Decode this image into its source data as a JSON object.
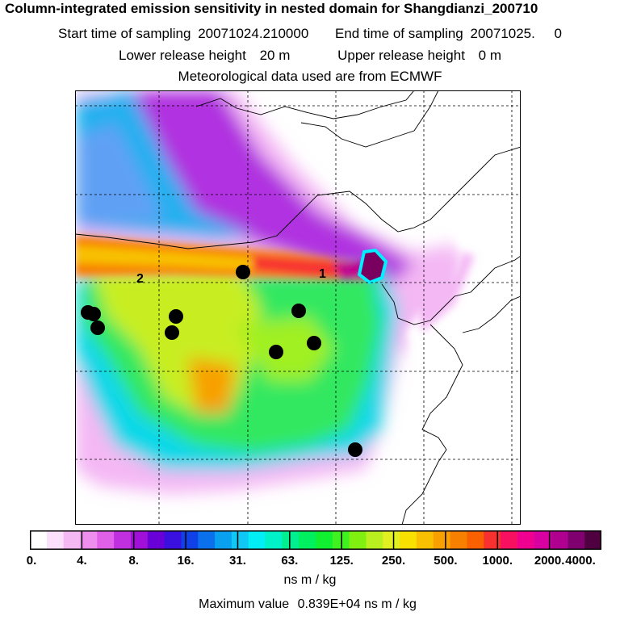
{
  "header": {
    "title": "Column-integrated emission sensitivity in nested domain for Shangdianzi_200710",
    "start_label": "Start time of sampling",
    "start_value": "20071024.210000",
    "end_label": "End time of sampling",
    "end_value": "20071025.     0",
    "lower_label": "Lower release height",
    "lower_value": "20 m",
    "upper_label": "Upper release height",
    "upper_value": "0 m",
    "met_text": "Meteorological data used are from ECMWF"
  },
  "map": {
    "labels": [
      {
        "text": "1",
        "name": "label-1"
      },
      {
        "text": "2",
        "name": "label-2"
      }
    ],
    "colors": {
      "frame": "#000000",
      "coast": "#000000",
      "grid": "#000000",
      "background": "#ffffff",
      "stations": "#000000"
    },
    "stations_count_note": ""
  },
  "colorbar": {
    "ticks": [
      "0.",
      "4.",
      "8.",
      "16.",
      "31.",
      "63.",
      "125.",
      "250.",
      "500.",
      "1000.",
      "2000.",
      "4000."
    ],
    "colors": [
      "#ffffff",
      "#fbe0fb",
      "#f4b8f4",
      "#ee8eee",
      "#e060e8",
      "#c030e0",
      "#a010d8",
      "#6a00d8",
      "#3a10e0",
      "#1040e8",
      "#0a70ec",
      "#0aa0f0",
      "#10c8f4",
      "#00eef4",
      "#00f0c8",
      "#00f090",
      "#00f060",
      "#10f030",
      "#40f020",
      "#80f010",
      "#b8f020",
      "#e0f020",
      "#f8e000",
      "#f8c000",
      "#f8a000",
      "#f88000",
      "#f86000",
      "#f83030",
      "#f81060",
      "#f00090",
      "#d800a0",
      "#b00090",
      "#800070",
      "#500040"
    ],
    "units": "ns m / kg"
  },
  "footer": {
    "max_label": "Maximum value",
    "max_value": "0.839E+04 ns m / kg"
  }
}
